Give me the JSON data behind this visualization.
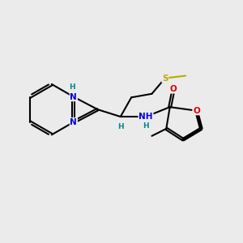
{
  "bg_color": "#ebebeb",
  "atom_colors": {
    "N": "#0000dd",
    "O": "#dd0000",
    "S": "#bbaa00",
    "C": "#000000",
    "H_label": "#008888"
  },
  "figsize": [
    3.0,
    3.0
  ],
  "dpi": 100,
  "xlim": [
    0,
    10
  ],
  "ylim": [
    0,
    10
  ]
}
